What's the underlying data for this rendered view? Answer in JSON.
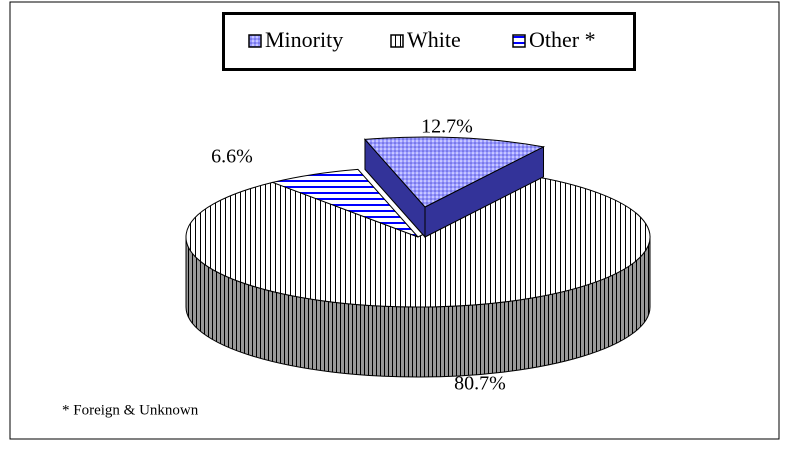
{
  "chart_data": {
    "type": "pie3d",
    "categories": [
      "Minority",
      "White",
      "Other *"
    ],
    "values": [
      12.7,
      80.7,
      6.6
    ],
    "value_labels": [
      "12.7%",
      "80.7%",
      "6.6%"
    ],
    "colors": [
      "#9999ff",
      "#ffffff",
      "#ffffff"
    ],
    "note": "* Foreign & Unknown"
  }
}
